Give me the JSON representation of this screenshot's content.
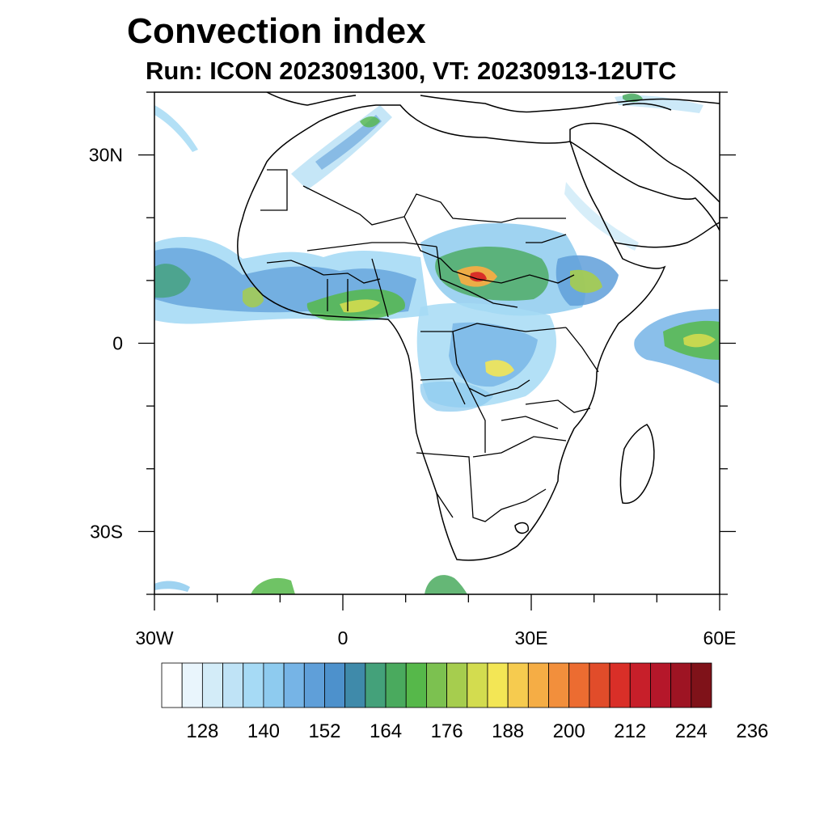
{
  "title": "Convection index",
  "subtitle": "Run: ICON 2023091300,  VT: 20230913-12UTC",
  "map": {
    "lon_range": [
      -30,
      60
    ],
    "lat_range": [
      -40,
      40
    ],
    "x_ticks": [
      {
        "lon": -30,
        "label": "30W"
      },
      {
        "lon": 0,
        "label": "0"
      },
      {
        "lon": 30,
        "label": "30E"
      },
      {
        "lon": 60,
        "label": "60E"
      }
    ],
    "y_ticks": [
      {
        "lat": 30,
        "label": "30N"
      },
      {
        "lat": 0,
        "label": "0"
      },
      {
        "lat": -30,
        "label": "30S"
      }
    ]
  },
  "colorbar": {
    "colors": [
      "#ffffff",
      "#e9f5fc",
      "#d3ecf8",
      "#bfe3f6",
      "#a6daf5",
      "#8ecbef",
      "#76b4e6",
      "#5f9fd9",
      "#4d91cc",
      "#3f8aaa",
      "#44a17a",
      "#4aaa5e",
      "#56b84a",
      "#7cc150",
      "#a6cd4e",
      "#d3dc4f",
      "#f3e655",
      "#f6cb4f",
      "#f5ad45",
      "#f28f3c",
      "#ec6c31",
      "#e14c2a",
      "#d92f28",
      "#c71f2a",
      "#b5172a",
      "#9e1423",
      "#7f1219"
    ],
    "labels": [
      "128",
      "140",
      "152",
      "164",
      "176",
      "188",
      "200",
      "212",
      "224",
      "236"
    ]
  },
  "icons": {
    "map": "africa-map-icon"
  }
}
